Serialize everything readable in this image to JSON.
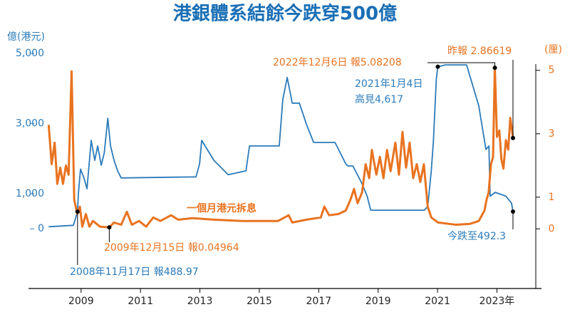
{
  "chart_data": {
    "type": "line",
    "title": "港銀體系結餘今跌穿500億",
    "ylabel": "億(港元)",
    "y2label": "(厘)",
    "xlim": [
      2007.23,
      2024.5
    ],
    "xticks": [
      2009,
      2011,
      2013,
      2015,
      2017,
      2019,
      2021,
      {
        "value": 2023,
        "label": "2023年"
      }
    ],
    "ylim": [
      -1700,
      5300
    ],
    "yticks": [
      0,
      {
        "value": 1000,
        "label": "1,000"
      },
      {
        "value": 3000,
        "label": "3,000"
      },
      {
        "value": 5000,
        "label": "5,000"
      }
    ],
    "y2lim": [
      -1.88,
      5.87
    ],
    "y2ticks": [
      0,
      1,
      3,
      5
    ],
    "series": [
      {
        "color": "#2b7bba",
        "x": [
          2007.91,
          2008.74,
          2008.88,
          2008.91,
          2008.98,
          2009.1,
          2009.2,
          2009.34,
          2009.46,
          2009.56,
          2009.68,
          2009.78,
          2009.9,
          2009.99,
          2010.11,
          2010.23,
          2010.35,
          2012.87,
          2012.99,
          2013.06,
          2013.47,
          2013.95,
          2014.55,
          2014.67,
          2015.67,
          2015.79,
          2015.94,
          2016.11,
          2016.35,
          2016.59,
          2016.83,
          2017.55,
          2017.91,
          2017.98,
          2018.15,
          2018.46,
          2018.63,
          2018.75,
          2020.55,
          2020.67,
          2020.79,
          2020.86,
          2020.96,
          2021.01,
          2021.26,
          2021.98,
          2022.39,
          2022.63,
          2022.73,
          2022.77,
          2022.94,
          2023.3,
          2023.49,
          2023.54
        ],
        "values": [
          60,
          100,
          488.97,
          1000,
          1700,
          1440,
          1140,
          2520,
          1950,
          2360,
          1810,
          2160,
          3150,
          2360,
          1950,
          1650,
          1450,
          1480,
          1850,
          2520,
          1950,
          1540,
          1650,
          2360,
          2360,
          3680,
          4310,
          3580,
          3580,
          2970,
          2460,
          2460,
          1850,
          1790,
          1790,
          1280,
          930,
          530,
          530,
          630,
          1650,
          2460,
          4270,
          4617,
          4670,
          4670,
          3500,
          2260,
          2360,
          930,
          1040,
          930,
          730,
          492.3
        ]
      },
      {
        "name": "一個月港元拆息",
        "color": "#e8731f",
        "axis": "y2",
        "x": [
          2007.91,
          2008.01,
          2008.11,
          2008.2,
          2008.3,
          2008.39,
          2008.49,
          2008.58,
          2008.68,
          2008.77,
          2008.87,
          2008.96,
          2009.04,
          2009.16,
          2009.28,
          2009.4,
          2009.64,
          2009.95,
          2010.11,
          2010.35,
          2010.54,
          2010.71,
          2010.95,
          2011.19,
          2011.43,
          2011.67,
          2012.03,
          2012.27,
          2012.75,
          2013.47,
          2014.43,
          2015.63,
          2015.99,
          2016.11,
          2016.59,
          2017.07,
          2017.19,
          2017.35,
          2017.67,
          2017.91,
          2018.07,
          2018.19,
          2018.31,
          2018.46,
          2018.58,
          2018.7,
          2018.79,
          2018.94,
          2019.06,
          2019.18,
          2019.3,
          2019.42,
          2019.58,
          2019.7,
          2019.82,
          2019.94,
          2020.06,
          2020.18,
          2020.3,
          2020.42,
          2020.54,
          2020.67,
          2020.79,
          2021.02,
          2021.62,
          2022.1,
          2022.39,
          2022.58,
          2022.65,
          2022.72,
          2022.8,
          2022.87,
          2022.93,
          2023.0,
          2023.08,
          2023.15,
          2023.22,
          2023.3,
          2023.38,
          2023.45,
          2023.54
        ],
        "values": [
          3.28,
          2.04,
          2.72,
          1.42,
          1.93,
          1.42,
          2.0,
          1.71,
          4.97,
          0.92,
          0.47,
          0.7,
          0.07,
          0.47,
          0.07,
          0.25,
          0.07,
          0.04964,
          0.2,
          0.13,
          0.54,
          0.13,
          0.25,
          0.07,
          0.36,
          0.25,
          0.43,
          0.29,
          0.34,
          0.29,
          0.25,
          0.25,
          0.43,
          0.2,
          0.29,
          0.36,
          0.7,
          0.43,
          0.47,
          0.58,
          0.92,
          1.26,
          0.81,
          1.15,
          2.04,
          1.6,
          2.49,
          1.71,
          2.27,
          1.6,
          2.49,
          1.82,
          2.72,
          1.71,
          3.06,
          1.93,
          2.72,
          1.6,
          2.04,
          1.48,
          2.04,
          0.7,
          0.36,
          0.2,
          0.13,
          0.16,
          0.25,
          0.58,
          0.92,
          1.15,
          2.04,
          2.27,
          5.08208,
          2.9,
          3.1,
          2.2,
          1.9,
          2.8,
          2.5,
          3.5,
          2.86619
        ]
      }
    ],
    "annotations": [
      {
        "text": "2008年11月17日 報488.97",
        "x": 2008.88,
        "value": 488.97,
        "series": 0
      },
      {
        "text": "2009年12月15日 報0.04964",
        "x": 2009.95,
        "value": 0.04964,
        "series": 1
      },
      {
        "lines": [
          "2021年1月4日",
          "高見4,617"
        ],
        "x": 2021.01,
        "value": 4617,
        "series": 0
      },
      {
        "text": "2022年12月6日 報5.08208",
        "x": 2022.93,
        "value": 5.08208,
        "series": 1
      },
      {
        "text": "昨報 2.86619",
        "x": 2023.54,
        "value": 2.86619,
        "series": 1
      },
      {
        "text": "今跌至492.3",
        "x": 2023.54,
        "value": 492.3,
        "series": 0
      }
    ]
  }
}
